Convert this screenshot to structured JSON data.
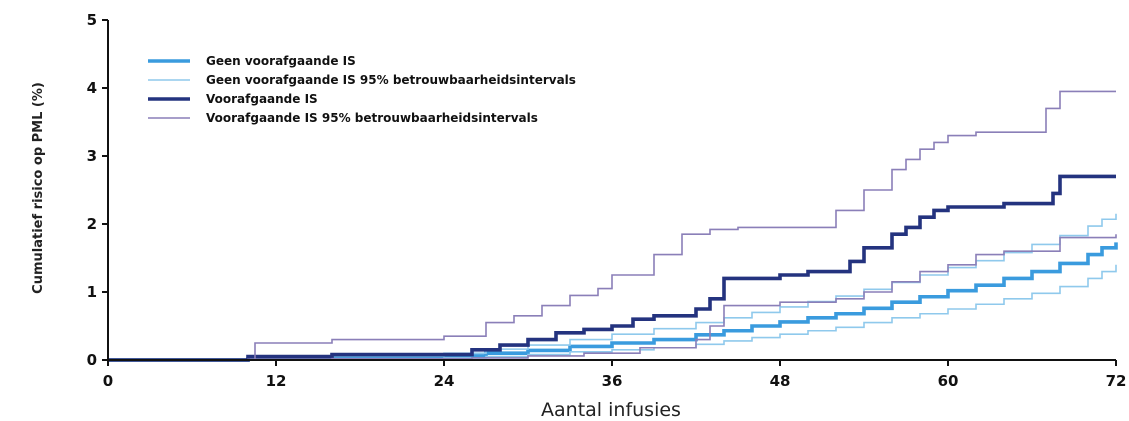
{
  "chart_data": {
    "type": "line",
    "step": true,
    "xlabel": "Aantal infusies",
    "ylabel": "Cumulatief risico op PML (%)",
    "xlim": [
      0,
      72
    ],
    "ylim": [
      0,
      5
    ],
    "xticks": [
      0,
      12,
      24,
      36,
      48,
      60,
      72
    ],
    "yticks": [
      0,
      1,
      2,
      3,
      4,
      5
    ],
    "grid": false,
    "legend_position": "top-left",
    "series": [
      {
        "name": "Geen voorafgaande IS",
        "color": "#3a9bde",
        "width": "thick",
        "x": [
          0,
          10,
          16,
          24,
          27,
          30,
          33,
          36,
          39,
          42,
          44,
          46,
          48,
          50,
          52,
          54,
          56,
          58,
          60,
          62,
          64,
          66,
          68,
          70,
          71,
          72
        ],
        "y": [
          0,
          0.02,
          0.04,
          0.06,
          0.1,
          0.14,
          0.2,
          0.25,
          0.3,
          0.37,
          0.43,
          0.5,
          0.56,
          0.62,
          0.68,
          0.76,
          0.85,
          0.93,
          1.02,
          1.1,
          1.2,
          1.3,
          1.42,
          1.55,
          1.65,
          1.73
        ]
      },
      {
        "name": "Geen voorafgaande IS 95% betrouwbaarheidsintervals",
        "color": "#8fc9ec",
        "width": "thin",
        "x": [
          0,
          10,
          16,
          24,
          27,
          30,
          33,
          36,
          39,
          42,
          44,
          46,
          48,
          50,
          52,
          54,
          56,
          58,
          60,
          62,
          64,
          66,
          68,
          70,
          71,
          72
        ],
        "y": [
          0,
          0.03,
          0.06,
          0.1,
          0.16,
          0.22,
          0.3,
          0.38,
          0.46,
          0.55,
          0.62,
          0.7,
          0.78,
          0.86,
          0.94,
          1.04,
          1.14,
          1.25,
          1.36,
          1.46,
          1.58,
          1.7,
          1.83,
          1.97,
          2.07,
          2.15
        ]
      },
      {
        "name": "Geen voorafgaande IS 95% betrouwbaarheidsintervals",
        "color": "#8fc9ec",
        "width": "thin",
        "x": [
          0,
          10,
          16,
          24,
          27,
          30,
          33,
          36,
          39,
          42,
          44,
          46,
          48,
          50,
          52,
          54,
          56,
          58,
          60,
          62,
          64,
          66,
          68,
          70,
          71,
          72
        ],
        "y": [
          0,
          0.01,
          0.02,
          0.03,
          0.05,
          0.08,
          0.12,
          0.15,
          0.18,
          0.23,
          0.28,
          0.33,
          0.38,
          0.43,
          0.48,
          0.55,
          0.62,
          0.68,
          0.75,
          0.82,
          0.9,
          0.98,
          1.08,
          1.2,
          1.3,
          1.4
        ]
      },
      {
        "name": "Voorafgaande IS",
        "color": "#24337f",
        "width": "thick",
        "x": [
          0,
          10,
          16,
          26,
          28,
          30,
          32,
          34,
          36,
          37.5,
          39,
          42,
          43,
          44,
          48,
          50,
          53,
          54,
          56,
          57,
          58,
          59,
          60,
          62,
          64,
          66,
          67.5,
          68,
          72
        ],
        "y": [
          0,
          0.05,
          0.08,
          0.15,
          0.22,
          0.3,
          0.4,
          0.45,
          0.5,
          0.6,
          0.65,
          0.75,
          0.9,
          1.2,
          1.25,
          1.3,
          1.45,
          1.65,
          1.85,
          1.95,
          2.1,
          2.2,
          2.25,
          2.25,
          2.3,
          2.3,
          2.45,
          2.7,
          2.7
        ]
      },
      {
        "name": "Voorafgaande IS 95% betrouwbaarheidsintervals",
        "color": "#8a7fb8",
        "width": "thin",
        "x": [
          0,
          10.5,
          16,
          24,
          27,
          29,
          31,
          33,
          35,
          36,
          39,
          41,
          43,
          45,
          48,
          52,
          54,
          56,
          57,
          58,
          59,
          60,
          62,
          64,
          66,
          67,
          68,
          72
        ],
        "y": [
          0,
          0.25,
          0.3,
          0.35,
          0.55,
          0.65,
          0.8,
          0.95,
          1.05,
          1.25,
          1.55,
          1.85,
          1.92,
          1.95,
          1.95,
          2.2,
          2.5,
          2.8,
          2.95,
          3.1,
          3.2,
          3.3,
          3.35,
          3.35,
          3.35,
          3.7,
          3.95,
          3.95
        ]
      },
      {
        "name": "Voorafgaande IS 95% betrouwbaarheidsintervals",
        "color": "#8a7fb8",
        "width": "thin",
        "x": [
          0,
          10,
          16,
          26,
          30,
          34,
          38,
          42,
          43,
          44,
          48,
          52,
          54,
          56,
          58,
          60,
          62,
          64,
          66,
          68,
          72
        ],
        "y": [
          0,
          0.01,
          0.02,
          0.03,
          0.06,
          0.1,
          0.18,
          0.3,
          0.5,
          0.8,
          0.85,
          0.9,
          1.0,
          1.15,
          1.3,
          1.4,
          1.55,
          1.6,
          1.6,
          1.8,
          1.85
        ]
      }
    ],
    "legend": [
      {
        "label": "Geen voorafgaande IS",
        "color": "#3a9bde",
        "width": "thick"
      },
      {
        "label": "Geen voorafgaande IS 95% betrouwbaarheidsintervals",
        "color": "#8fc9ec",
        "width": "thin"
      },
      {
        "label": "Voorafgaande IS",
        "color": "#24337f",
        "width": "thick"
      },
      {
        "label": "Voorafgaande IS 95% betrouwbaarheidsintervals",
        "color": "#8a7fb8",
        "width": "thin"
      }
    ]
  }
}
